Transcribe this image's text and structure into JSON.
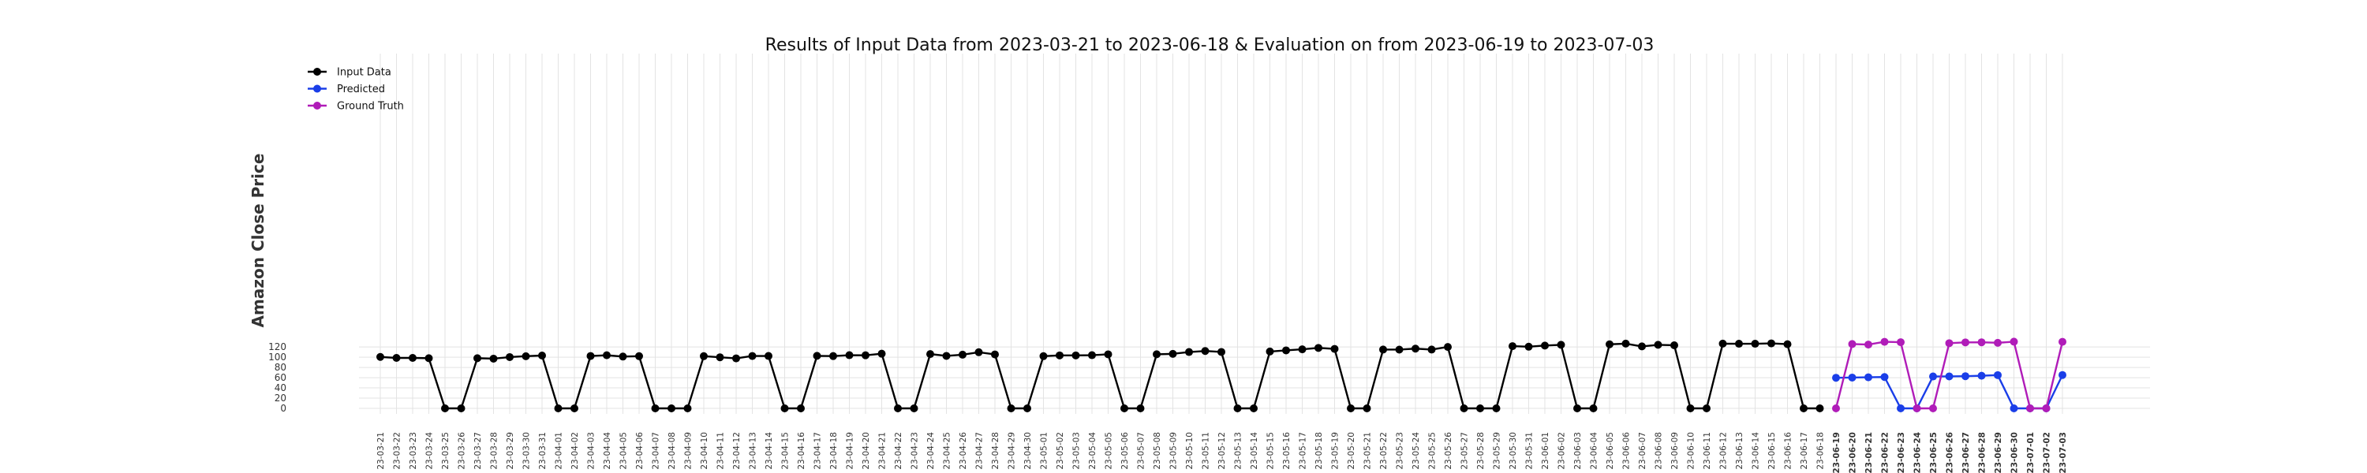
{
  "chart_data": {
    "type": "line",
    "title": "Results of Input Data from 2023-03-21 to 2023-06-18 & Evaluation on from 2023-06-19 to 2023-07-03",
    "xlabel": "",
    "ylabel": "Amazon Close Price",
    "ylim": [
      -5,
      138
    ],
    "yticks": [
      0,
      20,
      40,
      60,
      80,
      100,
      120
    ],
    "grid": true,
    "legend_position": "top-left",
    "x_categories": [
      "23-03-21",
      "23-03-22",
      "23-03-23",
      "23-03-24",
      "23-03-25",
      "23-03-26",
      "23-03-27",
      "23-03-28",
      "23-03-29",
      "23-03-30",
      "23-03-31",
      "23-04-01",
      "23-04-02",
      "23-04-03",
      "23-04-04",
      "23-04-05",
      "23-04-06",
      "23-04-07",
      "23-04-08",
      "23-04-09",
      "23-04-10",
      "23-04-11",
      "23-04-12",
      "23-04-13",
      "23-04-14",
      "23-04-15",
      "23-04-16",
      "23-04-17",
      "23-04-18",
      "23-04-19",
      "23-04-20",
      "23-04-21",
      "23-04-22",
      "23-04-23",
      "23-04-24",
      "23-04-25",
      "23-04-26",
      "23-04-27",
      "23-04-28",
      "23-04-29",
      "23-04-30",
      "23-05-01",
      "23-05-02",
      "23-05-03",
      "23-05-04",
      "23-05-05",
      "23-05-06",
      "23-05-07",
      "23-05-08",
      "23-05-09",
      "23-05-10",
      "23-05-11",
      "23-05-12",
      "23-05-13",
      "23-05-14",
      "23-05-15",
      "23-05-16",
      "23-05-17",
      "23-05-18",
      "23-05-19",
      "23-05-20",
      "23-05-21",
      "23-05-22",
      "23-05-23",
      "23-05-24",
      "23-05-25",
      "23-05-26",
      "23-05-27",
      "23-05-28",
      "23-05-29",
      "23-05-30",
      "23-05-31",
      "23-06-01",
      "23-06-02",
      "23-06-03",
      "23-06-04",
      "23-06-05",
      "23-06-06",
      "23-06-07",
      "23-06-08",
      "23-06-09",
      "23-06-10",
      "23-06-11",
      "23-06-12",
      "23-06-13",
      "23-06-14",
      "23-06-15",
      "23-06-16",
      "23-06-17",
      "23-06-18",
      "23-06-19",
      "23-06-20",
      "23-06-21",
      "23-06-22",
      "23-06-23",
      "23-06-24",
      "23-06-25",
      "23-06-26",
      "23-06-27",
      "23-06-28",
      "23-06-29",
      "23-06-30",
      "23-07-01",
      "23-07-02",
      "23-07-03"
    ],
    "bold_from": "23-06-19",
    "series": [
      {
        "name": "Input Data",
        "color": "#000000",
        "x_start": "23-03-21",
        "values": [
          100.6,
          98.7,
          98.7,
          98.1,
          0,
          0,
          98.1,
          97.2,
          100.3,
          102.0,
          103.3,
          0,
          0,
          102.4,
          103.9,
          101.3,
          102.1,
          0,
          0,
          0,
          102.1,
          99.9,
          97.8,
          102.4,
          102.5,
          0,
          0,
          102.7,
          102.3,
          104.0,
          103.8,
          106.9,
          0,
          0,
          106.2,
          102.6,
          105.0,
          109.8,
          105.5,
          0,
          0,
          102.1,
          103.6,
          103.6,
          104.0,
          105.7,
          0,
          0,
          105.8,
          106.6,
          110.2,
          112.2,
          110.3,
          0,
          0,
          111.2,
          113.4,
          115.5,
          118.2,
          116.3,
          0,
          0,
          115.0,
          114.9,
          116.8,
          115.0,
          120.1,
          0,
          0,
          0,
          121.7,
          120.6,
          122.8,
          124.3,
          0,
          0,
          125.3,
          126.6,
          121.2,
          124.3,
          123.4,
          0,
          0,
          126.6,
          126.4,
          126.4,
          127.1,
          125.5,
          0,
          0
        ]
      },
      {
        "name": "Predicted",
        "color": "#1a3ee8",
        "x_start": "23-06-19",
        "values": [
          59.8,
          60.2,
          60.8,
          61.3,
          0,
          0,
          62.4,
          62.5,
          62.9,
          63.8,
          65.0,
          0,
          0,
          0,
          65.2
        ]
      },
      {
        "name": "Ground Truth",
        "color": "#b01cb8",
        "x_start": "23-06-19",
        "values": [
          0,
          125.8,
          124.8,
          130.2,
          129.4,
          0,
          0,
          127.5,
          129.0,
          129.2,
          128.2,
          130.4,
          0,
          0,
          130.2
        ]
      }
    ]
  }
}
